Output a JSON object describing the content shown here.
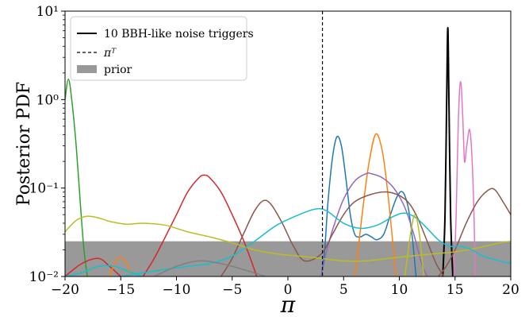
{
  "chart_data": {
    "type": "line",
    "title": "",
    "xlabel": "π",
    "ylabel": "Posterior PDF",
    "xlim": [
      -20,
      20
    ],
    "ylim": [
      0.01,
      10
    ],
    "yscale": "log",
    "x_ticks": [
      {
        "value": -20,
        "label": "−20"
      },
      {
        "value": -15,
        "label": "−15"
      },
      {
        "value": -10,
        "label": "−10"
      },
      {
        "value": -5,
        "label": "−5"
      },
      {
        "value": 0,
        "label": "0"
      },
      {
        "value": 5,
        "label": "5"
      },
      {
        "value": 10,
        "label": "10"
      },
      {
        "value": 15,
        "label": "15"
      },
      {
        "value": 20,
        "label": "20"
      }
    ],
    "y_ticks": [
      {
        "value": 10,
        "label": "10¹"
      },
      {
        "value": 1,
        "label": "10⁰"
      },
      {
        "value": 0.1,
        "label": "10⁻¹"
      },
      {
        "value": 0.01,
        "label": "10⁻²"
      }
    ],
    "legend": {
      "placement": "top-left",
      "entries": [
        {
          "label": "10 BBH-like noise triggers",
          "style": "solid",
          "color": "#000000"
        },
        {
          "label": "πᵀ",
          "style": "dashed",
          "color": "#000000"
        },
        {
          "label": "prior",
          "style": "patch",
          "color": "#999999"
        }
      ]
    },
    "prior": {
      "x_range": [
        -20,
        20
      ],
      "density": 0.025,
      "color": "#999999"
    },
    "pi_true": 3.1,
    "series": [
      {
        "color": "#000000",
        "width": 2.0,
        "points": [
          [
            13.9,
            0.01
          ],
          [
            14.1,
            0.05
          ],
          [
            14.25,
            1.0
          ],
          [
            14.35,
            6.5
          ],
          [
            14.45,
            1.0
          ],
          [
            14.6,
            0.05
          ],
          [
            14.8,
            0.01
          ]
        ]
      },
      {
        "color": "#2ca02c",
        "points": [
          [
            -20,
            1.0
          ],
          [
            -19.7,
            1.7
          ],
          [
            -19.4,
            1.0
          ],
          [
            -19.0,
            0.3
          ],
          [
            -18.6,
            0.06
          ],
          [
            -18.3,
            0.02
          ],
          [
            -18.0,
            0.01
          ]
        ]
      },
      {
        "color": "#d62728",
        "points": [
          [
            -13,
            0.01
          ],
          [
            -12,
            0.016
          ],
          [
            -11,
            0.028
          ],
          [
            -10,
            0.05
          ],
          [
            -9,
            0.09
          ],
          [
            -8,
            0.13
          ],
          [
            -7.5,
            0.14
          ],
          [
            -7,
            0.13
          ],
          [
            -6,
            0.09
          ],
          [
            -5,
            0.05
          ],
          [
            -4,
            0.026
          ],
          [
            -3.2,
            0.014
          ],
          [
            -2.8,
            0.01
          ]
        ]
      },
      {
        "color": "#d62728",
        "points": [
          [
            -20,
            0.01
          ],
          [
            -18.5,
            0.014
          ],
          [
            -17,
            0.016
          ],
          [
            -16,
            0.013
          ],
          [
            -15,
            0.01
          ]
        ]
      },
      {
        "color": "#1f77b4",
        "points": [
          [
            3.0,
            0.01
          ],
          [
            3.3,
            0.02
          ],
          [
            3.6,
            0.07
          ],
          [
            4.0,
            0.22
          ],
          [
            4.4,
            0.38
          ],
          [
            4.8,
            0.3
          ],
          [
            5.2,
            0.13
          ],
          [
            5.6,
            0.05
          ],
          [
            6.0,
            0.03
          ],
          [
            6.5,
            0.028
          ],
          [
            7.0,
            0.03
          ],
          [
            7.5,
            0.028
          ],
          [
            8.0,
            0.026
          ],
          [
            8.6,
            0.03
          ],
          [
            9.2,
            0.05
          ],
          [
            9.8,
            0.08
          ],
          [
            10.3,
            0.09
          ],
          [
            10.8,
            0.06
          ],
          [
            11.2,
            0.025
          ],
          [
            11.5,
            0.01
          ]
        ]
      },
      {
        "color": "#ff7f0e",
        "points": [
          [
            6.0,
            0.01
          ],
          [
            6.3,
            0.02
          ],
          [
            6.8,
            0.07
          ],
          [
            7.3,
            0.2
          ],
          [
            7.9,
            0.41
          ],
          [
            8.5,
            0.25
          ],
          [
            9.0,
            0.08
          ],
          [
            9.4,
            0.025
          ],
          [
            9.7,
            0.01
          ]
        ]
      },
      {
        "color": "#ff7f0e",
        "points": [
          [
            -16,
            0.01
          ],
          [
            -15.3,
            0.016
          ],
          [
            -14.6,
            0.015
          ],
          [
            -14,
            0.01
          ]
        ]
      },
      {
        "color": "#e377c2",
        "points": [
          [
            14.9,
            0.01
          ],
          [
            15.1,
            0.05
          ],
          [
            15.3,
            0.6
          ],
          [
            15.5,
            1.6
          ],
          [
            15.7,
            0.6
          ],
          [
            15.85,
            0.2
          ],
          [
            16.05,
            0.3
          ],
          [
            16.3,
            0.46
          ],
          [
            16.5,
            0.25
          ],
          [
            16.7,
            0.05
          ],
          [
            16.8,
            0.01
          ]
        ]
      },
      {
        "color": "#9467bd",
        "points": [
          [
            3.0,
            0.01
          ],
          [
            3.5,
            0.02
          ],
          [
            4.2,
            0.04
          ],
          [
            5.0,
            0.075
          ],
          [
            6.0,
            0.12
          ],
          [
            7.0,
            0.145
          ],
          [
            7.5,
            0.145
          ],
          [
            8.5,
            0.13
          ],
          [
            9.5,
            0.1
          ],
          [
            10.5,
            0.06
          ],
          [
            11.3,
            0.03
          ],
          [
            12.0,
            0.014
          ],
          [
            12.5,
            0.01
          ]
        ]
      },
      {
        "color": "#8c564b",
        "points": [
          [
            -6,
            0.01
          ],
          [
            -5,
            0.016
          ],
          [
            -4,
            0.03
          ],
          [
            -3,
            0.055
          ],
          [
            -2.2,
            0.072
          ],
          [
            -1.5,
            0.065
          ],
          [
            -0.5,
            0.04
          ],
          [
            0.5,
            0.022
          ],
          [
            1.5,
            0.015
          ],
          [
            3.0,
            0.018
          ],
          [
            4.0,
            0.03
          ],
          [
            5.0,
            0.05
          ],
          [
            6.0,
            0.07
          ],
          [
            7.5,
            0.085
          ],
          [
            9.0,
            0.09
          ],
          [
            10.5,
            0.075
          ],
          [
            11.5,
            0.05
          ],
          [
            12.5,
            0.025
          ],
          [
            13.3,
            0.014
          ],
          [
            14,
            0.01
          ]
        ]
      },
      {
        "color": "#8c564b",
        "points": [
          [
            13.5,
            0.01
          ],
          [
            14.2,
            0.013
          ],
          [
            15.0,
            0.02
          ],
          [
            16.0,
            0.04
          ],
          [
            17.0,
            0.07
          ],
          [
            18.0,
            0.095
          ],
          [
            18.6,
            0.095
          ],
          [
            19.3,
            0.07
          ],
          [
            20,
            0.05
          ]
        ]
      },
      {
        "color": "#bcbd22",
        "points": [
          [
            -20,
            0.032
          ],
          [
            -19,
            0.043
          ],
          [
            -18,
            0.048
          ],
          [
            -17,
            0.046
          ],
          [
            -16,
            0.042
          ],
          [
            -14.5,
            0.039
          ],
          [
            -13,
            0.04
          ],
          [
            -11,
            0.038
          ],
          [
            -9,
            0.032
          ],
          [
            -7,
            0.028
          ],
          [
            -5,
            0.024
          ],
          [
            -3,
            0.02
          ],
          [
            -1,
            0.018
          ],
          [
            1,
            0.017
          ],
          [
            3,
            0.016
          ],
          [
            5,
            0.015
          ],
          [
            7,
            0.015
          ],
          [
            9,
            0.016
          ],
          [
            11,
            0.017
          ],
          [
            13,
            0.018
          ],
          [
            15,
            0.019
          ],
          [
            17,
            0.021
          ],
          [
            19,
            0.024
          ],
          [
            20,
            0.025
          ]
        ]
      },
      {
        "color": "#17becf",
        "points": [
          [
            -15,
            0.01
          ],
          [
            -13,
            0.011
          ],
          [
            -11,
            0.012
          ],
          [
            -9,
            0.013
          ],
          [
            -7,
            0.014
          ],
          [
            -5,
            0.017
          ],
          [
            -3,
            0.025
          ],
          [
            -1,
            0.038
          ],
          [
            1,
            0.05
          ],
          [
            2.5,
            0.058
          ],
          [
            3.5,
            0.055
          ],
          [
            5,
            0.04
          ],
          [
            6.5,
            0.035
          ],
          [
            8,
            0.038
          ],
          [
            9.5,
            0.048
          ],
          [
            10.5,
            0.052
          ],
          [
            11.5,
            0.046
          ],
          [
            12.5,
            0.035
          ],
          [
            13.5,
            0.026
          ],
          [
            14.5,
            0.022
          ],
          [
            15.5,
            0.022
          ],
          [
            16.5,
            0.02
          ],
          [
            17.5,
            0.017
          ],
          [
            19,
            0.015
          ],
          [
            20,
            0.014
          ]
        ]
      },
      {
        "color": "#17becf",
        "points": [
          [
            -20,
            0.01
          ],
          [
            -18.5,
            0.011
          ],
          [
            -17,
            0.013
          ],
          [
            -15.5,
            0.013
          ],
          [
            -14,
            0.011
          ],
          [
            -13,
            0.01
          ]
        ]
      },
      {
        "color": "#7f7f7f",
        "points": [
          [
            -12,
            0.01
          ],
          [
            -10,
            0.013
          ],
          [
            -8,
            0.015
          ],
          [
            -6,
            0.014
          ],
          [
            -4,
            0.012
          ],
          [
            -2,
            0.01
          ]
        ]
      },
      {
        "color": "#bcbd22",
        "points": [
          [
            10.5,
            0.01
          ],
          [
            11,
            0.03
          ],
          [
            11.4,
            0.05
          ],
          [
            11.8,
            0.03
          ],
          [
            12.2,
            0.01
          ]
        ]
      }
    ]
  }
}
